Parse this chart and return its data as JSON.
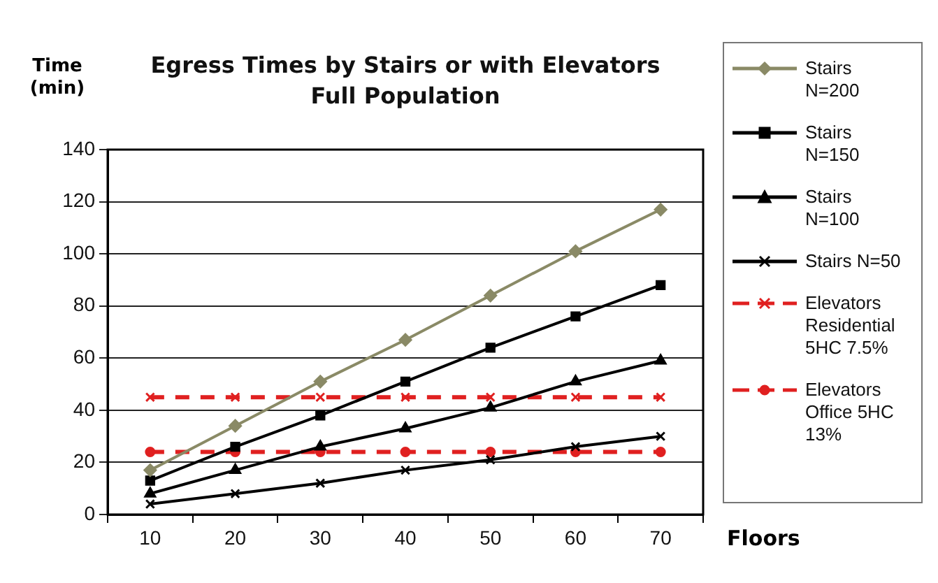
{
  "chart_data": {
    "type": "line",
    "title": "Egress Times by Stairs or with Elevators",
    "subtitle": "Full Population",
    "xlabel": "Floors",
    "ylabel": "Time (min)",
    "categories": [
      "10",
      "20",
      "30",
      "40",
      "50",
      "60",
      "70"
    ],
    "series": [
      {
        "name": "Stairs N=200",
        "color": "#8a8a66",
        "marker": "diamond",
        "line_style": "solid",
        "values": [
          17,
          34,
          51,
          67,
          84,
          101,
          117
        ]
      },
      {
        "name": "Stairs N=150",
        "color": "#000000",
        "marker": "square",
        "line_style": "solid",
        "values": [
          13,
          26,
          38,
          51,
          64,
          76,
          88
        ]
      },
      {
        "name": "Stairs N=100",
        "color": "#000000",
        "marker": "triangle",
        "line_style": "solid",
        "values": [
          8,
          17,
          26,
          33,
          41,
          51,
          59
        ]
      },
      {
        "name": "Stairs N=50",
        "color": "#000000",
        "marker": "cross",
        "line_style": "solid",
        "values": [
          4,
          8,
          12,
          17,
          21,
          26,
          30
        ]
      },
      {
        "name": "Elevators Residential 5HC 7.5%",
        "color": "#e02020",
        "marker": "cross",
        "line_style": "dashed",
        "values": [
          45,
          45,
          45,
          45,
          45,
          45,
          45
        ]
      },
      {
        "name": "Elevators Office 5HC 13%",
        "color": "#e02020",
        "marker": "circle",
        "line_style": "dashed",
        "values": [
          24,
          24,
          24,
          24,
          24,
          24,
          24
        ]
      }
    ],
    "ylim": [
      0,
      140
    ],
    "yticks": [
      0,
      20,
      40,
      60,
      80,
      100,
      120,
      140
    ],
    "grid": "y",
    "legend": "right"
  }
}
